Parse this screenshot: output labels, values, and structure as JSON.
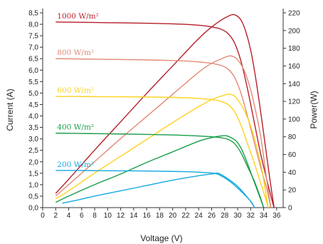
{
  "chart_data": {
    "type": "line",
    "xlabel": "Voltage (V)",
    "ylabel_left": "Current (A)",
    "ylabel_right": "Power(W)",
    "xlim": [
      0,
      37
    ],
    "ylim_left": [
      0,
      8.5
    ],
    "ylim_right": [
      0,
      220
    ],
    "x_ticks": [
      "0",
      "2",
      "4",
      "6",
      "8",
      "10",
      "12",
      "14",
      "16",
      "18",
      "20",
      "22",
      "24",
      "26",
      "28",
      "30",
      "32",
      "34",
      "36"
    ],
    "y_left_ticks": [
      "0,0",
      "0,5",
      "1,0",
      "1,5",
      "2,0",
      "2,5",
      "3,0",
      "3,5",
      "4,0",
      "4,5",
      "5,0",
      "5,5",
      "6,0",
      "6,5",
      "7,0",
      "7,5",
      "8,0",
      "8,5"
    ],
    "y_right_ticks": [
      "0",
      "20",
      "40",
      "60",
      "80",
      "100",
      "120",
      "140",
      "160",
      "180",
      "200",
      "220"
    ],
    "grid": false,
    "series": [
      {
        "name": "1000 W/m²",
        "color": "#b5202a",
        "current": [
          [
            2,
            8.1
          ],
          [
            5,
            8.09
          ],
          [
            10,
            8.07
          ],
          [
            15,
            8.05
          ],
          [
            20,
            8.02
          ],
          [
            23,
            7.98
          ],
          [
            25,
            7.93
          ],
          [
            26.5,
            7.86
          ],
          [
            27.5,
            7.78
          ],
          [
            28.5,
            7.6
          ],
          [
            29.5,
            7.2
          ],
          [
            30.5,
            6.4
          ],
          [
            31.5,
            5.2
          ],
          [
            32.5,
            3.8
          ],
          [
            33.5,
            2.4
          ],
          [
            34.5,
            1.2
          ],
          [
            35.3,
            0.3
          ],
          [
            35.6,
            0
          ]
        ],
        "power": [
          [
            2,
            16
          ],
          [
            4,
            32
          ],
          [
            8,
            65
          ],
          [
            12,
            97
          ],
          [
            16,
            129
          ],
          [
            20,
            160
          ],
          [
            24,
            191
          ],
          [
            26,
            204
          ],
          [
            27.5,
            212
          ],
          [
            28.5,
            216
          ],
          [
            29.2,
            218
          ],
          [
            29.8,
            217
          ],
          [
            30.5,
            212
          ],
          [
            31.2,
            200
          ],
          [
            32,
            178
          ],
          [
            32.8,
            145
          ],
          [
            33.6,
            105
          ],
          [
            34.4,
            62
          ],
          [
            35,
            30
          ],
          [
            35.6,
            0
          ]
        ]
      },
      {
        "name": "800 W/m²",
        "color": "#e08b76",
        "current": [
          [
            2,
            6.5
          ],
          [
            5,
            6.49
          ],
          [
            10,
            6.47
          ],
          [
            15,
            6.45
          ],
          [
            20,
            6.42
          ],
          [
            23,
            6.38
          ],
          [
            25,
            6.33
          ],
          [
            26.5,
            6.27
          ],
          [
            27.5,
            6.2
          ],
          [
            28.5,
            6.05
          ],
          [
            29.5,
            5.7
          ],
          [
            30.5,
            5.0
          ],
          [
            31.5,
            4.0
          ],
          [
            32.5,
            2.9
          ],
          [
            33.5,
            1.8
          ],
          [
            34.5,
            0.8
          ],
          [
            35.1,
            0
          ]
        ],
        "power": [
          [
            2,
            13
          ],
          [
            4,
            26
          ],
          [
            8,
            52
          ],
          [
            12,
            78
          ],
          [
            16,
            103
          ],
          [
            20,
            128
          ],
          [
            24,
            153
          ],
          [
            26,
            163
          ],
          [
            27.5,
            168
          ],
          [
            28.5,
            171
          ],
          [
            29.2,
            171
          ],
          [
            30,
            167
          ],
          [
            31,
            155
          ],
          [
            32,
            133
          ],
          [
            32.8,
            108
          ],
          [
            33.6,
            78
          ],
          [
            34.3,
            40
          ],
          [
            35.1,
            0
          ]
        ]
      },
      {
        "name": "600 W/m²",
        "color": "#ffd21f",
        "current": [
          [
            2,
            4.85
          ],
          [
            5,
            4.85
          ],
          [
            10,
            4.84
          ],
          [
            15,
            4.83
          ],
          [
            20,
            4.81
          ],
          [
            23,
            4.78
          ],
          [
            25,
            4.74
          ],
          [
            26.5,
            4.7
          ],
          [
            27.5,
            4.63
          ],
          [
            28.5,
            4.5
          ],
          [
            29.5,
            4.2
          ],
          [
            30.5,
            3.6
          ],
          [
            31.5,
            2.8
          ],
          [
            32.5,
            2.0
          ],
          [
            33.5,
            1.1
          ],
          [
            34.3,
            0.4
          ],
          [
            34.7,
            0
          ]
        ],
        "power": [
          [
            2,
            10
          ],
          [
            4,
            19
          ],
          [
            8,
            39
          ],
          [
            12,
            58
          ],
          [
            16,
            77
          ],
          [
            20,
            96
          ],
          [
            24,
            114
          ],
          [
            26,
            122
          ],
          [
            27.5,
            126
          ],
          [
            28.5,
            128
          ],
          [
            29.3,
            127
          ],
          [
            30,
            122
          ],
          [
            31,
            110
          ],
          [
            32,
            92
          ],
          [
            32.8,
            72
          ],
          [
            33.6,
            48
          ],
          [
            34.2,
            22
          ],
          [
            34.7,
            0
          ]
        ]
      },
      {
        "name": "400 W/m²",
        "color": "#1a9e4a",
        "current": [
          [
            2,
            3.25
          ],
          [
            5,
            3.24
          ],
          [
            10,
            3.22
          ],
          [
            15,
            3.2
          ],
          [
            20,
            3.17
          ],
          [
            23,
            3.14
          ],
          [
            25,
            3.11
          ],
          [
            26.5,
            3.08
          ],
          [
            27.5,
            3.05
          ],
          [
            28.5,
            2.98
          ],
          [
            29.5,
            2.8
          ],
          [
            30.5,
            2.4
          ],
          [
            31.5,
            1.8
          ],
          [
            32.5,
            1.2
          ],
          [
            33.3,
            0.6
          ],
          [
            34,
            0
          ]
        ],
        "power": [
          [
            2,
            6
          ],
          [
            4,
            13
          ],
          [
            8,
            26
          ],
          [
            12,
            38
          ],
          [
            16,
            51
          ],
          [
            20,
            63
          ],
          [
            24,
            75
          ],
          [
            26,
            79
          ],
          [
            27.5,
            81
          ],
          [
            28.3,
            81
          ],
          [
            29,
            79
          ],
          [
            29.8,
            75
          ],
          [
            30.6,
            66
          ],
          [
            31.4,
            52
          ],
          [
            32.2,
            36
          ],
          [
            33,
            20
          ],
          [
            33.6,
            8
          ],
          [
            34,
            0
          ]
        ]
      },
      {
        "name": "200 W/m²",
        "color": "#16a9df",
        "current": [
          [
            2,
            1.62
          ],
          [
            5,
            1.62
          ],
          [
            10,
            1.61
          ],
          [
            15,
            1.6
          ],
          [
            20,
            1.58
          ],
          [
            23,
            1.56
          ],
          [
            25,
            1.53
          ],
          [
            26.3,
            1.5
          ],
          [
            27,
            1.45
          ],
          [
            28,
            1.3
          ],
          [
            29,
            1.1
          ],
          [
            30,
            0.85
          ],
          [
            31,
            0.58
          ],
          [
            32,
            0.28
          ],
          [
            32.6,
            0
          ]
        ],
        "power": [
          [
            3,
            5
          ],
          [
            5,
            8
          ],
          [
            8,
            13
          ],
          [
            12,
            19
          ],
          [
            16,
            25
          ],
          [
            20,
            31
          ],
          [
            24,
            36
          ],
          [
            26,
            38
          ],
          [
            26.8,
            39
          ],
          [
            27.3,
            38
          ],
          [
            28,
            35
          ],
          [
            29,
            30
          ],
          [
            30,
            24
          ],
          [
            31,
            16
          ],
          [
            32,
            7
          ],
          [
            32.6,
            0
          ]
        ]
      }
    ]
  }
}
